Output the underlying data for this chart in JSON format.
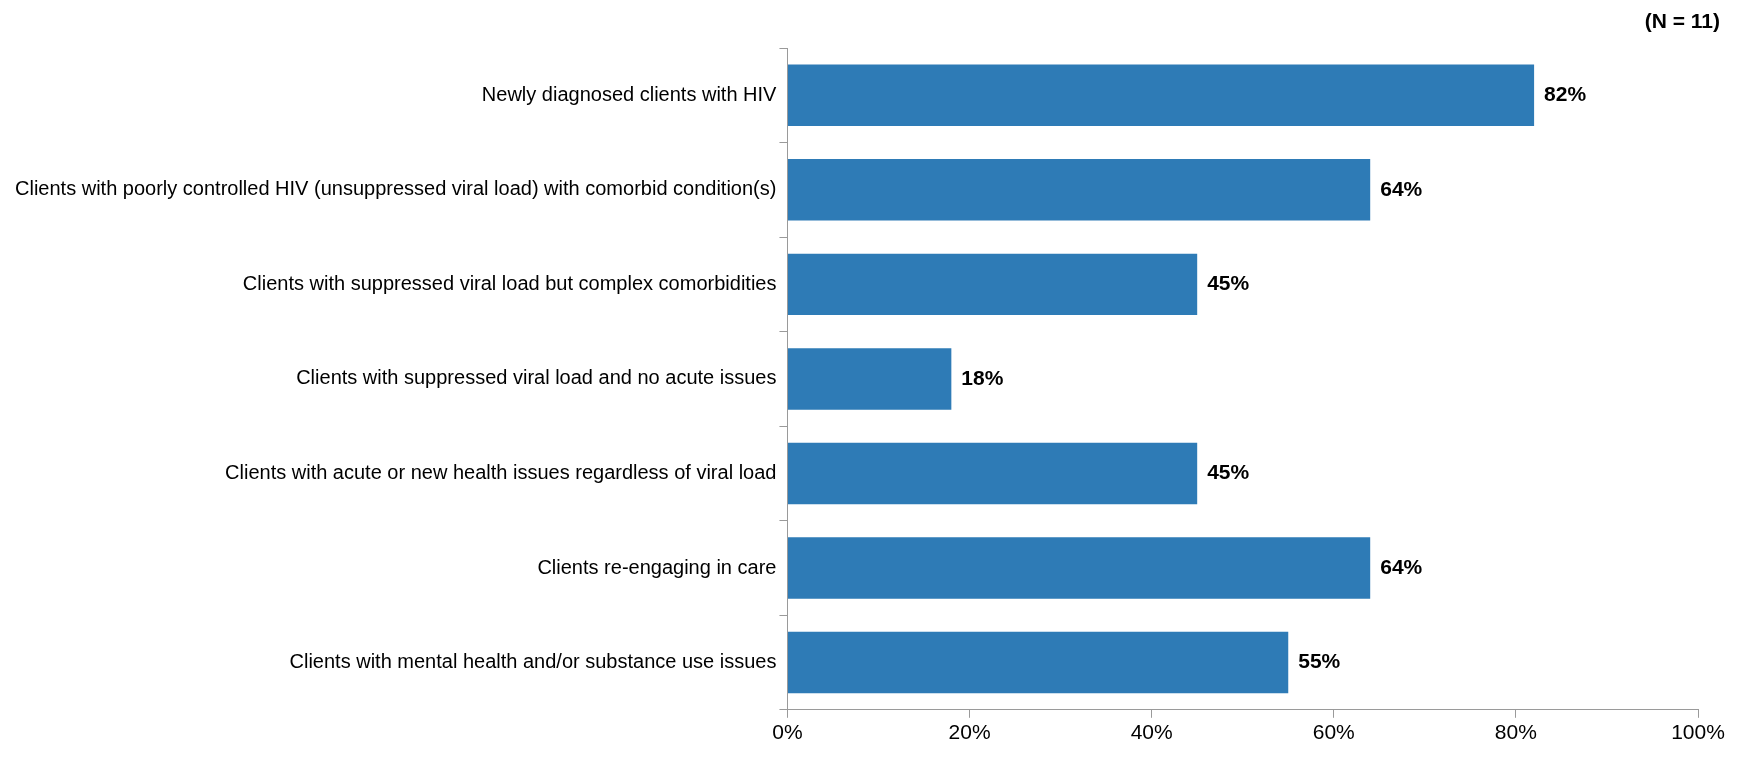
{
  "chart_data": {
    "type": "bar",
    "orientation": "horizontal",
    "annotations": [
      "(N = 11)"
    ],
    "categories": [
      "Newly diagnosed clients with HIV",
      "Clients with poorly controlled HIV (unsuppressed viral load) with comorbid condition(s)",
      "Clients with suppressed viral load but complex comorbidities",
      "Clients with suppressed viral load and no acute issues",
      "Clients with acute or new health issues regardless of viral load",
      "Clients re-engaging in care",
      "Clients with mental health and/or substance use issues"
    ],
    "values": [
      82,
      64,
      45,
      18,
      45,
      64,
      55
    ],
    "value_labels": [
      "82%",
      "64%",
      "45%",
      "18%",
      "45%",
      "64%",
      "55%"
    ],
    "color": "#2e7bb6",
    "xlim": [
      0,
      100
    ],
    "xticks": [
      {
        "value": 0,
        "label": "0%"
      },
      {
        "value": 20,
        "label": "20%"
      },
      {
        "value": 40,
        "label": "40%"
      },
      {
        "value": 60,
        "label": "60%"
      },
      {
        "value": 80,
        "label": "80%"
      },
      {
        "value": 100,
        "label": "100%"
      }
    ],
    "grid": false,
    "legend": false
  }
}
